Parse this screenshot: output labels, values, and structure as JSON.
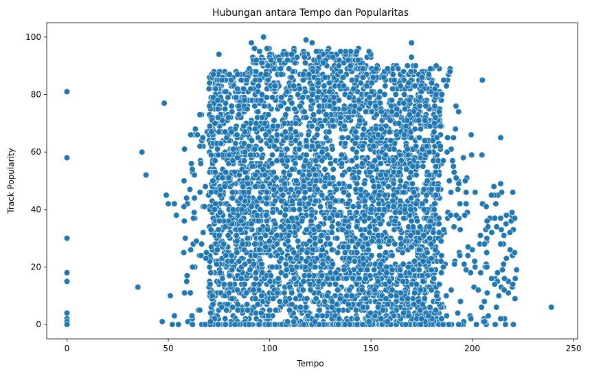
{
  "chart_data": {
    "type": "scatter",
    "title": "Hubungan antara Tempo dan Popularitas",
    "xlabel": "Tempo",
    "ylabel": "Track Popularity",
    "xlim": [
      -10,
      252
    ],
    "ylim": [
      -5,
      105
    ],
    "xticks": [
      0,
      50,
      100,
      150,
      200,
      250
    ],
    "yticks": [
      0,
      20,
      40,
      60,
      80,
      100
    ],
    "grid": false,
    "point_color": "#1f77b4",
    "point_edge_color": "#ffffff",
    "outliers": [
      {
        "x": 0,
        "y": 81
      },
      {
        "x": 0,
        "y": 58
      },
      {
        "x": 0,
        "y": 30
      },
      {
        "x": 0,
        "y": 18
      },
      {
        "x": 0,
        "y": 15
      },
      {
        "x": 0,
        "y": 4
      },
      {
        "x": 0,
        "y": 2
      },
      {
        "x": 0,
        "y": 1
      },
      {
        "x": 0,
        "y": 0
      },
      {
        "x": 35,
        "y": 13
      },
      {
        "x": 37,
        "y": 60
      },
      {
        "x": 39,
        "y": 52
      },
      {
        "x": 47,
        "y": 1
      },
      {
        "x": 48,
        "y": 77
      },
      {
        "x": 49,
        "y": 45
      },
      {
        "x": 50,
        "y": 42
      },
      {
        "x": 51,
        "y": 10
      },
      {
        "x": 53,
        "y": 42
      },
      {
        "x": 54,
        "y": 38
      },
      {
        "x": 53,
        "y": 3
      },
      {
        "x": 52,
        "y": 0
      },
      {
        "x": 55,
        "y": 0
      },
      {
        "x": 58,
        "y": 61
      },
      {
        "x": 58,
        "y": 11
      },
      {
        "x": 62,
        "y": 0
      },
      {
        "x": 220,
        "y": 46
      },
      {
        "x": 221,
        "y": 37
      },
      {
        "x": 220,
        "y": 14
      },
      {
        "x": 214,
        "y": 65
      },
      {
        "x": 214,
        "y": 49
      },
      {
        "x": 214,
        "y": 28
      },
      {
        "x": 214,
        "y": 2
      },
      {
        "x": 239,
        "y": 6
      },
      {
        "x": 205,
        "y": 85
      },
      {
        "x": 97,
        "y": 100
      },
      {
        "x": 118,
        "y": 99
      },
      {
        "x": 170,
        "y": 98
      },
      {
        "x": 91,
        "y": 98
      },
      {
        "x": 121,
        "y": 98
      },
      {
        "x": 75,
        "y": 94
      },
      {
        "x": 143,
        "y": 95
      },
      {
        "x": 135,
        "y": 95
      },
      {
        "x": 189,
        "y": 88
      },
      {
        "x": 170,
        "y": 93
      }
    ],
    "cloud": {
      "x_range": [
        57,
        222
      ],
      "y_range": [
        0,
        100
      ],
      "point_count": 4200,
      "dense_x_range": [
        70,
        185
      ]
    }
  }
}
